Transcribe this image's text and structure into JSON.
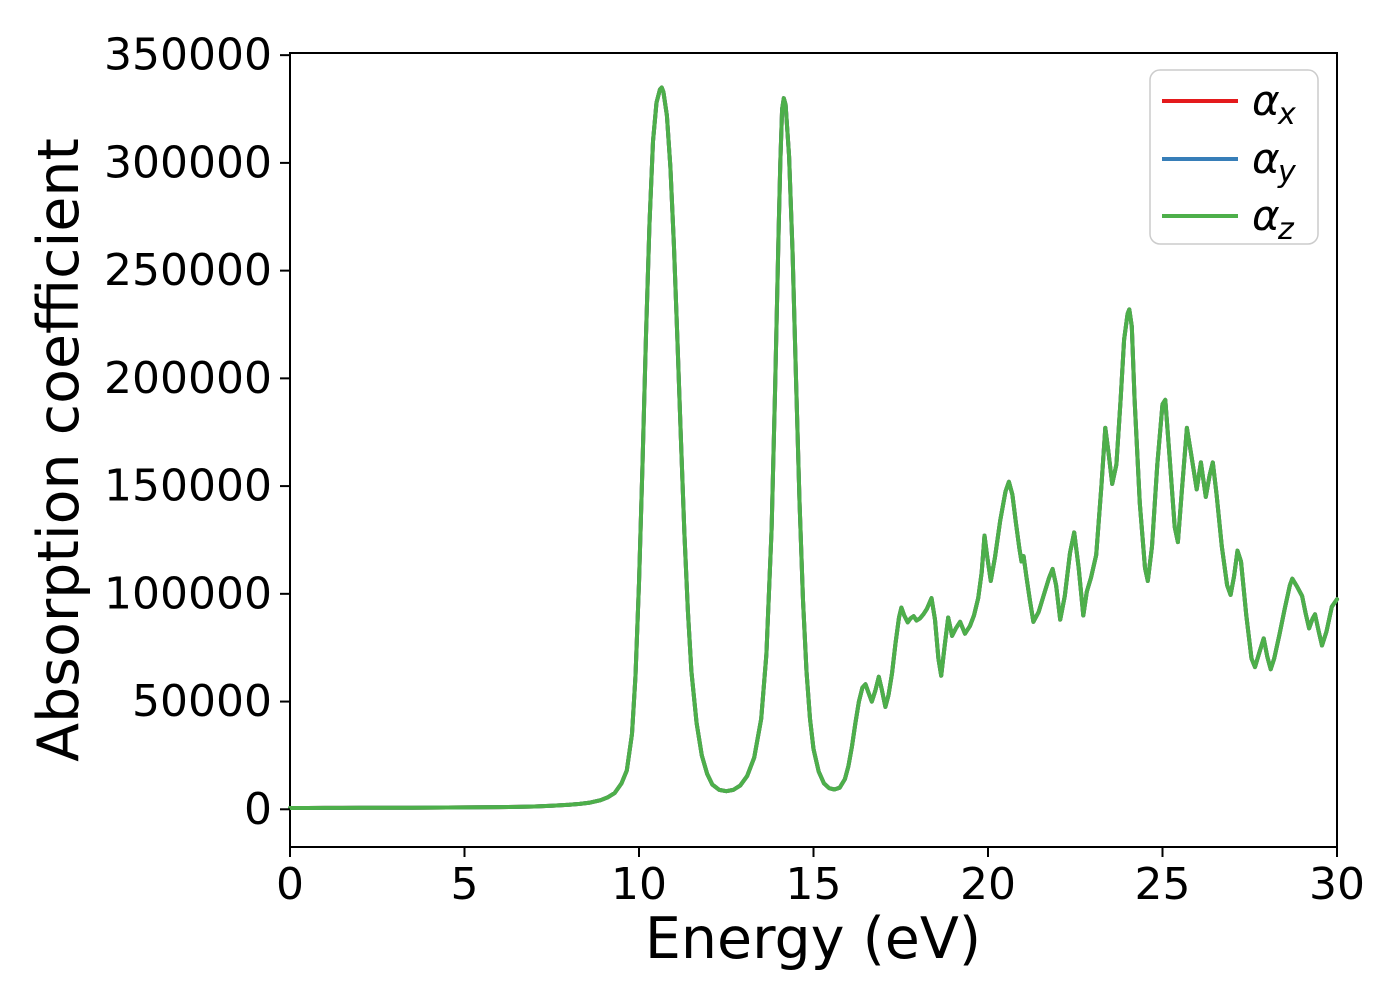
{
  "chart_data": {
    "type": "line",
    "title": "",
    "xlabel": "Energy (eV)",
    "ylabel": "Absorption coefficient",
    "xlim": [
      0,
      30
    ],
    "ylim": [
      -17500,
      351000
    ],
    "xticks": [
      0,
      5,
      10,
      15,
      20,
      25,
      30
    ],
    "yticks": [
      0,
      50000,
      100000,
      150000,
      200000,
      250000,
      300000,
      350000
    ],
    "grid": false,
    "legend_position": "upper right",
    "series_overlap": "all three series coincide exactly; green (last drawn) is visible",
    "series": [
      {
        "name": "alpha_x",
        "label_symbol": "α",
        "label_sub": "x",
        "color": "#e41a1c"
      },
      {
        "name": "alpha_y",
        "label_symbol": "α",
        "label_sub": "y",
        "color": "#377eb8"
      },
      {
        "name": "alpha_z",
        "label_symbol": "α",
        "label_sub": "z",
        "color": "#4daf4a"
      }
    ],
    "points": [
      [
        0,
        600
      ],
      [
        0.5,
        600
      ],
      [
        1,
        650
      ],
      [
        1.5,
        650
      ],
      [
        2,
        700
      ],
      [
        2.5,
        700
      ],
      [
        3,
        750
      ],
      [
        3.5,
        750
      ],
      [
        4,
        800
      ],
      [
        4.5,
        850
      ],
      [
        5,
        900
      ],
      [
        5.5,
        950
      ],
      [
        6,
        1000
      ],
      [
        6.5,
        1100
      ],
      [
        7,
        1300
      ],
      [
        7.5,
        1600
      ],
      [
        8,
        2100
      ],
      [
        8.3,
        2500
      ],
      [
        8.6,
        3100
      ],
      [
        8.9,
        4200
      ],
      [
        9.1,
        5500
      ],
      [
        9.3,
        7500
      ],
      [
        9.5,
        12000
      ],
      [
        9.65,
        18000
      ],
      [
        9.8,
        35000
      ],
      [
        9.9,
        62000
      ],
      [
        10.0,
        105000
      ],
      [
        10.1,
        160000
      ],
      [
        10.2,
        220000
      ],
      [
        10.3,
        272000
      ],
      [
        10.4,
        310000
      ],
      [
        10.5,
        328000
      ],
      [
        10.6,
        334000
      ],
      [
        10.65,
        335000
      ],
      [
        10.7,
        333000
      ],
      [
        10.8,
        322000
      ],
      [
        10.9,
        298000
      ],
      [
        11.0,
        262000
      ],
      [
        11.1,
        218000
      ],
      [
        11.2,
        172000
      ],
      [
        11.3,
        128000
      ],
      [
        11.4,
        92000
      ],
      [
        11.5,
        64000
      ],
      [
        11.65,
        40000
      ],
      [
        11.8,
        25000
      ],
      [
        11.95,
        16500
      ],
      [
        12.1,
        11500
      ],
      [
        12.3,
        9000
      ],
      [
        12.5,
        8400
      ],
      [
        12.7,
        9000
      ],
      [
        12.9,
        11000
      ],
      [
        13.1,
        15500
      ],
      [
        13.3,
        24000
      ],
      [
        13.5,
        42000
      ],
      [
        13.65,
        72000
      ],
      [
        13.8,
        130000
      ],
      [
        13.9,
        195000
      ],
      [
        14.0,
        268000
      ],
      [
        14.05,
        300000
      ],
      [
        14.1,
        325000
      ],
      [
        14.15,
        330000
      ],
      [
        14.2,
        327000
      ],
      [
        14.3,
        303000
      ],
      [
        14.4,
        258000
      ],
      [
        14.5,
        200000
      ],
      [
        14.6,
        143000
      ],
      [
        14.7,
        97000
      ],
      [
        14.8,
        64000
      ],
      [
        14.9,
        42000
      ],
      [
        15.0,
        28000
      ],
      [
        15.15,
        17500
      ],
      [
        15.3,
        12000
      ],
      [
        15.45,
        9800
      ],
      [
        15.6,
        9200
      ],
      [
        15.75,
        10000
      ],
      [
        15.9,
        14000
      ],
      [
        16.0,
        20000
      ],
      [
        16.1,
        29000
      ],
      [
        16.2,
        40000
      ],
      [
        16.3,
        50000
      ],
      [
        16.4,
        56500
      ],
      [
        16.49,
        58000
      ],
      [
        16.58,
        54000
      ],
      [
        16.67,
        50000
      ],
      [
        16.77,
        55000
      ],
      [
        16.87,
        61500
      ],
      [
        16.95,
        56000
      ],
      [
        17.06,
        47500
      ],
      [
        17.15,
        53000
      ],
      [
        17.25,
        63000
      ],
      [
        17.35,
        77000
      ],
      [
        17.45,
        89000
      ],
      [
        17.52,
        93600
      ],
      [
        17.6,
        90000
      ],
      [
        17.7,
        86800
      ],
      [
        17.78,
        88600
      ],
      [
        17.87,
        89600
      ],
      [
        17.95,
        87600
      ],
      [
        18.05,
        88600
      ],
      [
        18.15,
        90500
      ],
      [
        18.25,
        93000
      ],
      [
        18.38,
        98000
      ],
      [
        18.48,
        88000
      ],
      [
        18.58,
        70000
      ],
      [
        18.66,
        62000
      ],
      [
        18.76,
        76000
      ],
      [
        18.86,
        89000
      ],
      [
        18.97,
        80500
      ],
      [
        19.08,
        84000
      ],
      [
        19.2,
        87000
      ],
      [
        19.34,
        81500
      ],
      [
        19.48,
        85000
      ],
      [
        19.6,
        90000
      ],
      [
        19.72,
        98000
      ],
      [
        19.82,
        110000
      ],
      [
        19.9,
        127000
      ],
      [
        19.98,
        117000
      ],
      [
        20.08,
        106000
      ],
      [
        20.2,
        117000
      ],
      [
        20.35,
        134000
      ],
      [
        20.5,
        147500
      ],
      [
        20.6,
        152000
      ],
      [
        20.7,
        146000
      ],
      [
        20.8,
        133000
      ],
      [
        20.9,
        121000
      ],
      [
        20.96,
        115000
      ],
      [
        21.02,
        117500
      ],
      [
        21.1,
        108000
      ],
      [
        21.2,
        97000
      ],
      [
        21.3,
        87000
      ],
      [
        21.45,
        91500
      ],
      [
        21.6,
        99500
      ],
      [
        21.75,
        107500
      ],
      [
        21.85,
        111500
      ],
      [
        21.95,
        104000
      ],
      [
        22.07,
        88000
      ],
      [
        22.2,
        99000
      ],
      [
        22.35,
        119000
      ],
      [
        22.47,
        128500
      ],
      [
        22.6,
        112000
      ],
      [
        22.73,
        90000
      ],
      [
        22.83,
        101000
      ],
      [
        22.95,
        107500
      ],
      [
        23.1,
        118000
      ],
      [
        23.25,
        150000
      ],
      [
        23.36,
        177000
      ],
      [
        23.45,
        166000
      ],
      [
        23.56,
        151000
      ],
      [
        23.68,
        160000
      ],
      [
        23.8,
        190000
      ],
      [
        23.9,
        218000
      ],
      [
        24.0,
        230000
      ],
      [
        24.05,
        232000
      ],
      [
        24.12,
        224000
      ],
      [
        24.2,
        190000
      ],
      [
        24.35,
        142000
      ],
      [
        24.5,
        112000
      ],
      [
        24.58,
        106000
      ],
      [
        24.7,
        122000
      ],
      [
        24.85,
        160000
      ],
      [
        25.0,
        188000
      ],
      [
        25.08,
        190000
      ],
      [
        25.2,
        164000
      ],
      [
        25.35,
        131000
      ],
      [
        25.44,
        124000
      ],
      [
        25.55,
        147000
      ],
      [
        25.7,
        177000
      ],
      [
        25.82,
        165000
      ],
      [
        25.98,
        148500
      ],
      [
        26.1,
        161000
      ],
      [
        26.24,
        145000
      ],
      [
        26.35,
        155000
      ],
      [
        26.44,
        161000
      ],
      [
        26.55,
        146000
      ],
      [
        26.7,
        122000
      ],
      [
        26.85,
        104000
      ],
      [
        26.95,
        99500
      ],
      [
        27.05,
        108000
      ],
      [
        27.15,
        120000
      ],
      [
        27.25,
        115000
      ],
      [
        27.4,
        90000
      ],
      [
        27.55,
        70000
      ],
      [
        27.65,
        66000
      ],
      [
        27.78,
        73000
      ],
      [
        27.9,
        79300
      ],
      [
        28.0,
        71000
      ],
      [
        28.1,
        65000
      ],
      [
        28.2,
        70000
      ],
      [
        28.35,
        81000
      ],
      [
        28.5,
        93000
      ],
      [
        28.65,
        104000
      ],
      [
        28.72,
        107000
      ],
      [
        28.85,
        103500
      ],
      [
        29.0,
        99000
      ],
      [
        29.1,
        91000
      ],
      [
        29.2,
        84000
      ],
      [
        29.3,
        88500
      ],
      [
        29.37,
        90500
      ],
      [
        29.47,
        83000
      ],
      [
        29.57,
        76000
      ],
      [
        29.7,
        82500
      ],
      [
        29.85,
        94000
      ],
      [
        30.0,
        97500
      ]
    ]
  },
  "legend": {
    "items": [
      {
        "symbol": "α",
        "sub": "x"
      },
      {
        "symbol": "α",
        "sub": "y"
      },
      {
        "symbol": "α",
        "sub": "z"
      }
    ]
  }
}
